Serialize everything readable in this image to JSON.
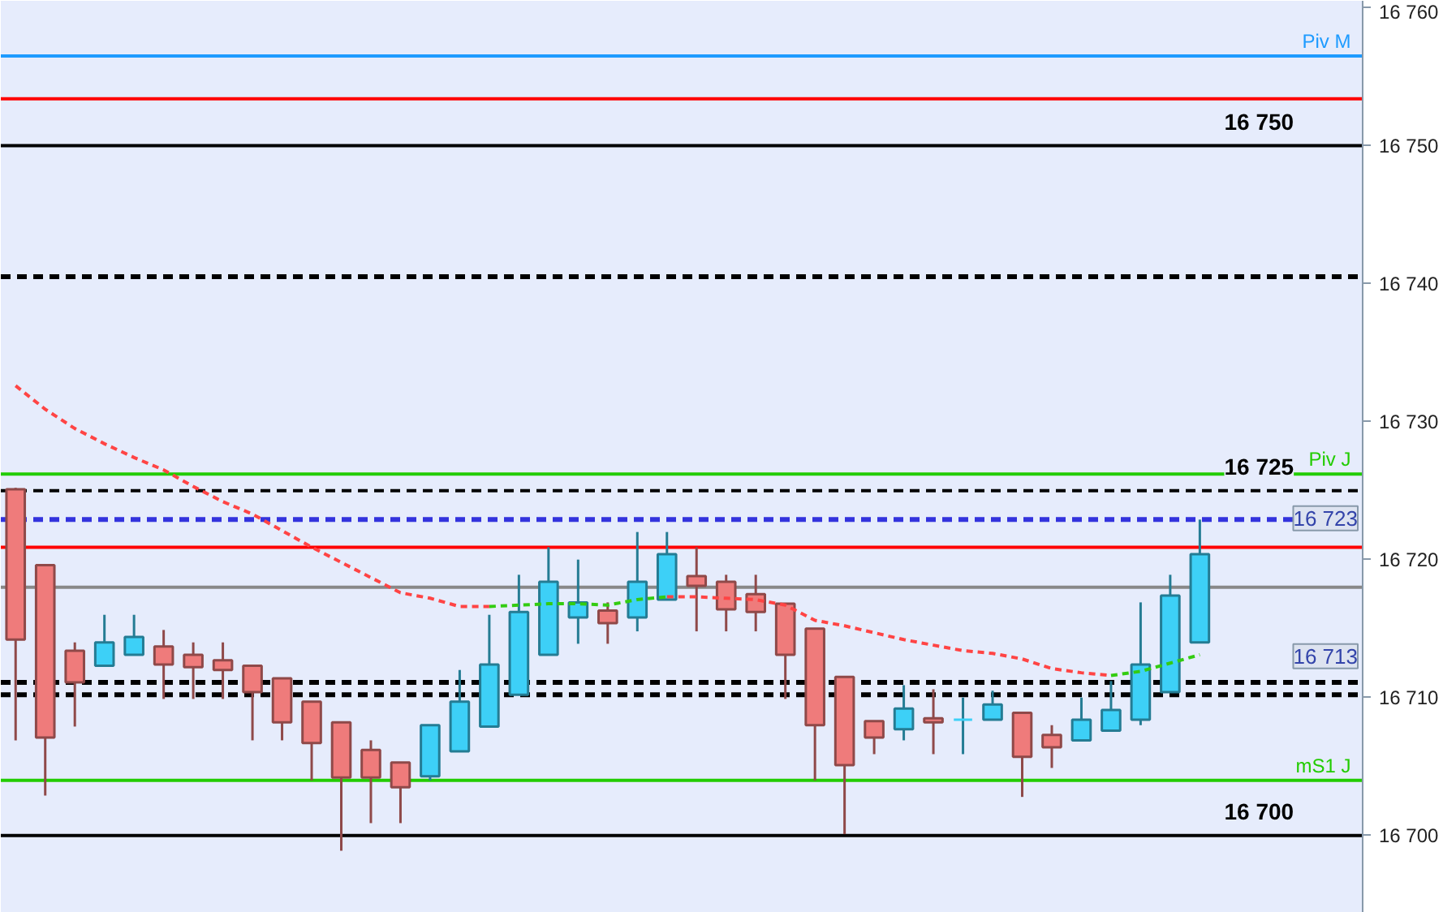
{
  "chart_data": {
    "type": "candlestick",
    "categories": [
      null,
      null,
      null,
      null,
      null,
      null,
      null,
      null,
      null,
      null,
      null,
      null,
      null,
      null,
      null,
      null,
      null,
      null,
      null,
      null,
      null,
      null,
      null,
      null,
      null,
      null,
      null,
      null,
      null,
      null,
      null,
      null,
      null,
      null,
      null,
      null,
      null,
      null,
      null,
      null,
      null,
      null,
      null,
      null,
      null,
      null
    ],
    "ohlc": [
      [
        16725.1,
        16725.2,
        16706.9,
        16714.2
      ],
      [
        16719.6,
        16719.6,
        16702.9,
        16707.1
      ],
      [
        16713.4,
        16714.0,
        16707.9,
        16711.1
      ],
      [
        16712.3,
        16716.0,
        16712.3,
        16714.0
      ],
      [
        16713.1,
        16716.0,
        16713.1,
        16714.4
      ],
      [
        16713.7,
        16714.9,
        16709.9,
        16712.4
      ],
      [
        16713.1,
        16714.0,
        16709.9,
        16712.2
      ],
      [
        16712.7,
        16714.0,
        16709.9,
        16712.0
      ],
      [
        16712.3,
        16712.3,
        16706.9,
        16710.4
      ],
      [
        16711.4,
        16711.4,
        16706.9,
        16708.2
      ],
      [
        16709.7,
        16709.7,
        16704.0,
        16706.7
      ],
      [
        16708.2,
        16708.2,
        16698.9,
        16704.2
      ],
      [
        16706.2,
        16706.9,
        16700.9,
        16704.2
      ],
      [
        16705.3,
        16705.3,
        16700.9,
        16703.5
      ],
      [
        16704.3,
        16708.0,
        16704.0,
        16708.0
      ],
      [
        16706.1,
        16712.0,
        16706.1,
        16709.7
      ],
      [
        16707.9,
        16716.0,
        16707.9,
        16712.4
      ],
      [
        16710.2,
        16718.9,
        16710.2,
        16716.2
      ],
      [
        16713.1,
        16720.9,
        16713.1,
        16718.4
      ],
      [
        16715.8,
        16720.0,
        16713.9,
        16716.9
      ],
      [
        16716.3,
        16716.9,
        16713.9,
        16715.4
      ],
      [
        16715.8,
        16722.0,
        16714.8,
        16718.4
      ],
      [
        16717.1,
        16722.0,
        16717.1,
        16720.4
      ],
      [
        16718.8,
        16720.9,
        16714.8,
        16718.1
      ],
      [
        16718.4,
        16718.9,
        16714.8,
        16716.4
      ],
      [
        16717.5,
        16718.9,
        16714.8,
        16716.2
      ],
      [
        16716.8,
        16716.8,
        16709.9,
        16713.1
      ],
      [
        16715.0,
        16715.0,
        16704.0,
        16708.0
      ],
      [
        16711.5,
        16711.5,
        16700.1,
        16705.1
      ],
      [
        16708.3,
        16708.3,
        16705.9,
        16707.1
      ],
      [
        16707.7,
        16710.9,
        16706.9,
        16709.2
      ],
      [
        16708.5,
        16710.6,
        16705.9,
        16708.2
      ],
      [
        16708.4,
        16710.0,
        16705.9,
        16708.4
      ],
      [
        16708.4,
        16710.5,
        16708.4,
        16709.5
      ],
      [
        16708.9,
        16708.9,
        16702.8,
        16705.7
      ],
      [
        16707.3,
        16708.0,
        16704.9,
        16706.4
      ],
      [
        16706.9,
        16710.0,
        16706.9,
        16708.4
      ],
      [
        16707.6,
        16711.2,
        16707.6,
        16709.1
      ],
      [
        16708.4,
        16716.9,
        16708.0,
        16712.4
      ],
      [
        16710.4,
        16718.9,
        16710.4,
        16717.4
      ],
      [
        16714.0,
        16722.9,
        16714.0,
        16720.4
      ],
      null,
      null,
      null,
      null,
      null
    ],
    "colors": [
      "#ef7b7b",
      "#ef7b7b",
      "#ef7b7b",
      "#3dd0f7",
      "#3dd0f7",
      "#ef7b7b",
      "#ef7b7b",
      "#ef7b7b",
      "#ef7b7b",
      "#ef7b7b",
      "#ef7b7b",
      "#ef7b7b",
      "#ef7b7b",
      "#ef7b7b",
      "#3dd0f7",
      "#3dd0f7",
      "#3dd0f7",
      "#3dd0f7",
      "#3dd0f7",
      "#3dd0f7",
      "#ef7b7b",
      "#3dd0f7",
      "#3dd0f7",
      "#ef7b7b",
      "#ef7b7b",
      "#ef7b7b",
      "#ef7b7b",
      "#ef7b7b",
      "#ef7b7b",
      "#ef7b7b",
      "#3dd0f7",
      "#ef7b7b",
      "#3dd0f7",
      "#3dd0f7",
      "#ef7b7b",
      "#ef7b7b",
      "#3dd0f7",
      "#3dd0f7",
      "#3dd0f7",
      "#3dd0f7",
      "#3dd0f7",
      null,
      null,
      null,
      null,
      null
    ],
    "series": [
      {
        "type": "line",
        "color": "#ff4444",
        "line_style": "dashed",
        "values": [
          16732.6,
          16730.9,
          16729.5,
          16728.4,
          16727.4,
          16726.5,
          16725.3,
          16724.2,
          16723.3,
          16722.1,
          16720.9,
          16719.8,
          16718.7,
          16717.6,
          16717.2,
          16716.6,
          16716.6,
          null,
          null,
          null,
          null,
          null,
          16717.3,
          16717.3,
          16717.2,
          16717.1,
          16716.7,
          16715.6,
          16715.2,
          16714.7,
          16714.2,
          16713.8,
          16713.4,
          16713.2,
          16712.8,
          16712.1,
          16711.8,
          16711.6,
          null,
          null,
          null,
          null,
          null,
          null,
          null,
          null
        ]
      },
      {
        "type": "line",
        "color": "#33cc11",
        "line_style": "dashed",
        "values": [
          null,
          null,
          null,
          null,
          null,
          null,
          null,
          null,
          null,
          null,
          null,
          null,
          null,
          null,
          null,
          null,
          16716.6,
          16716.7,
          16716.8,
          16716.8,
          16716.7,
          16717.1,
          16717.3,
          null,
          null,
          null,
          null,
          null,
          null,
          null,
          null,
          null,
          null,
          null,
          null,
          null,
          null,
          16711.6,
          16711.9,
          16712.5,
          16713.1,
          null,
          null,
          null,
          null,
          null
        ]
      }
    ],
    "ref_lines": [
      {
        "axis": "y",
        "value": 16756.5,
        "label": "Piv M",
        "color": "#1e9bff"
      },
      {
        "axis": "y",
        "value": 16753.4,
        "color": "#ff0000"
      },
      {
        "axis": "y",
        "value": 16750,
        "label": "16 750",
        "color": "#000000"
      },
      {
        "axis": "y",
        "value": 16740.5,
        "color": "#000000",
        "line_style": "dashed"
      },
      {
        "axis": "y",
        "value": 16726.2,
        "label": "Piv J",
        "color": "#22cc00"
      },
      {
        "axis": "y",
        "value": 16725.0,
        "label": "16 725",
        "color": "#000000",
        "line_style": "dashed"
      },
      {
        "axis": "y",
        "value": 16722.9,
        "color": "#3333dd",
        "line_style": "dashed"
      },
      {
        "axis": "y",
        "value": 16720.9,
        "color": "#ff0000"
      },
      {
        "axis": "y",
        "value": 16718.0,
        "color": "#888888"
      },
      {
        "axis": "y",
        "value": 16711.1,
        "color": "#000000",
        "line_style": "dashed"
      },
      {
        "axis": "y",
        "value": 16710.2,
        "color": "#000000",
        "line_style": "dashed"
      },
      {
        "axis": "y",
        "value": 16704.0,
        "label": "mS1 J",
        "color": "#22cc00"
      },
      {
        "axis": "y",
        "value": 16700,
        "label": "16 700",
        "color": "#000000"
      }
    ],
    "annotations": [
      {
        "text": "16 723",
        "y": 16723
      },
      {
        "text": "16 713",
        "y": 16713
      }
    ],
    "ylim": [
      16694.4,
      16760.5
    ],
    "yticks": [
      {
        "value": 16700,
        "label": "16 700"
      },
      {
        "value": 16710,
        "label": "16 710"
      },
      {
        "value": 16720,
        "label": "16 720"
      },
      {
        "value": 16730,
        "label": "16 730"
      },
      {
        "value": 16740,
        "label": "16 740"
      },
      {
        "value": 16750,
        "label": "16 750"
      },
      {
        "value": 16760,
        "label": "16 760"
      }
    ],
    "tick_labels": "y",
    "grid": false
  }
}
